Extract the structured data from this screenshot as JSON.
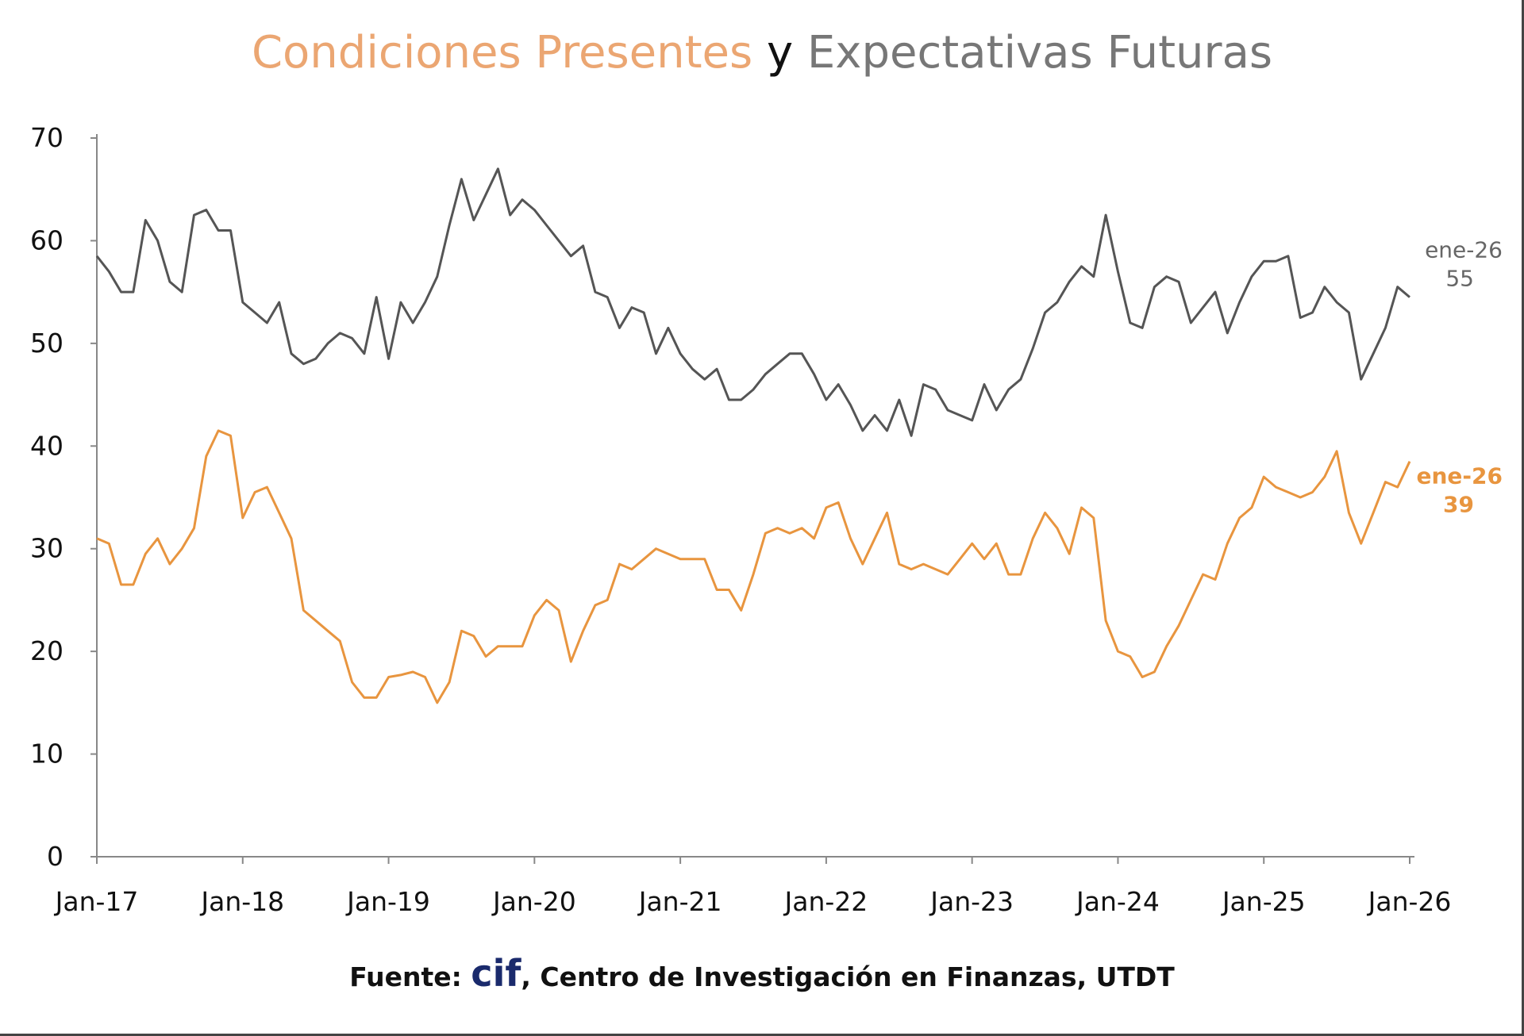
{
  "chart_data": {
    "type": "line",
    "title": {
      "part1": "Condiciones Presentes",
      "part2": " y ",
      "part3": "Expectativas Futuras"
    },
    "xlabel": "",
    "ylabel": "",
    "ylim": [
      0,
      70
    ],
    "yticks": [
      "0",
      "10",
      "20",
      "30",
      "40",
      "50",
      "60",
      "70"
    ],
    "xticks": [
      "Jan-17",
      "Jan-18",
      "Jan-19",
      "Jan-20",
      "Jan-21",
      "Jan-22",
      "Jan-23",
      "Jan-24",
      "Jan-25",
      "Jan-26"
    ],
    "x_start": "Jan-17",
    "x_end": "Jan-26",
    "frequency": "monthly",
    "grid": false,
    "series": [
      {
        "name": "Expectativas Futuras",
        "color": "#555555",
        "annotation": {
          "date": "ene-26",
          "value": "55"
        },
        "values": [
          58.5,
          57,
          55,
          55,
          62,
          60,
          56,
          55,
          62.5,
          63,
          61,
          61,
          54,
          53,
          52,
          54,
          49,
          48,
          48.5,
          50,
          51,
          50.5,
          49,
          54.5,
          48.5,
          54,
          52,
          54,
          56.5,
          61.5,
          66,
          62,
          64.5,
          67,
          62.5,
          64,
          63,
          61.5,
          60,
          58.5,
          59.5,
          55,
          54.5,
          51.5,
          53.5,
          53,
          49,
          51.5,
          49,
          47.5,
          46.5,
          47.5,
          44.5,
          44.5,
          45.5,
          47,
          48,
          49,
          49,
          47,
          44.5,
          46,
          44,
          41.5,
          43,
          41.5,
          44.5,
          41,
          46,
          45.5,
          43.5,
          43,
          42.5,
          46,
          43.5,
          45.5,
          46.5,
          49.5,
          53,
          54,
          56,
          57.5,
          56.5,
          62.5,
          57,
          52,
          51.5,
          55.5,
          56.5,
          56,
          52,
          53.5,
          55,
          51,
          54,
          56.5,
          58,
          58,
          58.5,
          52.5,
          53,
          55.5,
          54,
          53,
          46.5,
          49,
          51.5,
          55.5,
          54.5
        ]
      },
      {
        "name": "Condiciones Presentes",
        "color": "#E8953F",
        "annotation": {
          "date": "ene-26",
          "value": "39"
        },
        "values": [
          31,
          30.5,
          26.5,
          26.5,
          29.5,
          31,
          28.5,
          30,
          32,
          39,
          41.5,
          41,
          33,
          35.5,
          36,
          33.5,
          31,
          24,
          23,
          22,
          21,
          17,
          15.5,
          15.5,
          17.5,
          17.7,
          18,
          17.5,
          15,
          17,
          22,
          21.5,
          19.5,
          20.5,
          20.5,
          20.5,
          23.5,
          25,
          24,
          19,
          22,
          24.5,
          25,
          28.5,
          28,
          29,
          30,
          29.5,
          29,
          29,
          29,
          26,
          26,
          24,
          27.5,
          31.5,
          32,
          31.5,
          32,
          31,
          34,
          34.5,
          31,
          28.5,
          31,
          33.5,
          28.5,
          28,
          28.5,
          28,
          27.5,
          29,
          30.5,
          29,
          30.5,
          27.5,
          27.5,
          31,
          33.5,
          32,
          29.5,
          34,
          33,
          23,
          20,
          19.5,
          17.5,
          18,
          20.5,
          22.5,
          25,
          27.5,
          27,
          30.5,
          33,
          34,
          37,
          36,
          35.5,
          35,
          35.5,
          37,
          39.5,
          33.5,
          30.5,
          33.5,
          36.5,
          36,
          38.5
        ]
      }
    ]
  },
  "footer": {
    "prefix": "Fuente: ",
    "logo": "cif",
    "text": ", Centro de Investigación en Finanzas, UTDT"
  }
}
